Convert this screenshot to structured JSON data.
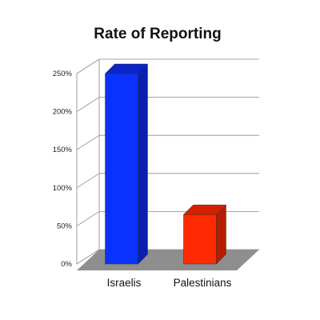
{
  "chart_data": {
    "type": "bar",
    "title": "Rate of Reporting",
    "xlabel": "",
    "ylabel": "",
    "categories": [
      "Israelis",
      "Palestinians"
    ],
    "values": [
      250,
      65
    ],
    "value_unit": "%",
    "ylim": [
      0,
      250
    ],
    "yticks": [
      "0%",
      "50%",
      "100%",
      "150%",
      "200%",
      "250%"
    ],
    "ytick_values": [
      0,
      50,
      100,
      150,
      200,
      250
    ],
    "grid": true,
    "legend": "none",
    "style": "3d",
    "colors": {
      "bars": [
        "#0a32ff",
        "#ff2a00"
      ],
      "bar_sides": [
        "#0a1fb0",
        "#b81c00"
      ],
      "bar_tops": [
        "#0a24c8",
        "#d52000"
      ],
      "floor": "#8e8e8e",
      "grid": "#8a8a8a"
    }
  }
}
